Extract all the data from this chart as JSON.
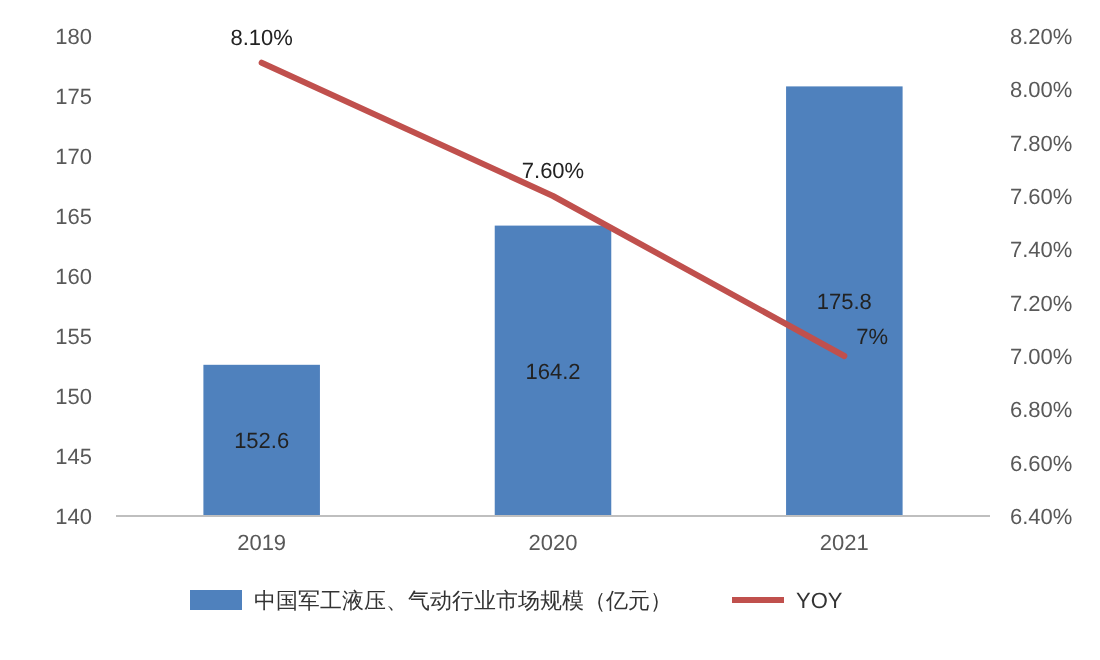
{
  "chart_data": {
    "type": "bar",
    "categories": [
      "2019",
      "2020",
      "2021"
    ],
    "series": [
      {
        "name": "中国军工液压、气动行业市场规模（亿元）",
        "color": "#4f81bd",
        "values": [
          152.6,
          164.2,
          175.8
        ]
      },
      {
        "name": "YOY",
        "type": "line",
        "axis": "y2",
        "color": "#c0504d",
        "values": [
          8.1,
          7.6,
          7.0
        ],
        "value_labels": [
          "8.10%",
          "7.60%",
          "7%"
        ]
      }
    ],
    "data_labels": true,
    "ylim": [
      140,
      180
    ],
    "yticks": [
      140,
      145,
      150,
      155,
      160,
      165,
      170,
      175,
      180
    ],
    "y2lim": [
      6.4,
      8.2
    ],
    "y2ticks": [
      {
        "value": 6.4,
        "label": "6.40%"
      },
      {
        "value": 6.6,
        "label": "6.60%"
      },
      {
        "value": 6.8,
        "label": "6.80%"
      },
      {
        "value": 7.0,
        "label": "7.00%"
      },
      {
        "value": 7.2,
        "label": "7.20%"
      },
      {
        "value": 7.4,
        "label": "7.40%"
      },
      {
        "value": 7.6,
        "label": "7.60%"
      },
      {
        "value": 7.8,
        "label": "7.80%"
      },
      {
        "value": 8.0,
        "label": "8.00%"
      },
      {
        "value": 8.2,
        "label": "8.20%"
      }
    ],
    "legend": "bottom",
    "marker": "none",
    "line_style": "solid"
  }
}
